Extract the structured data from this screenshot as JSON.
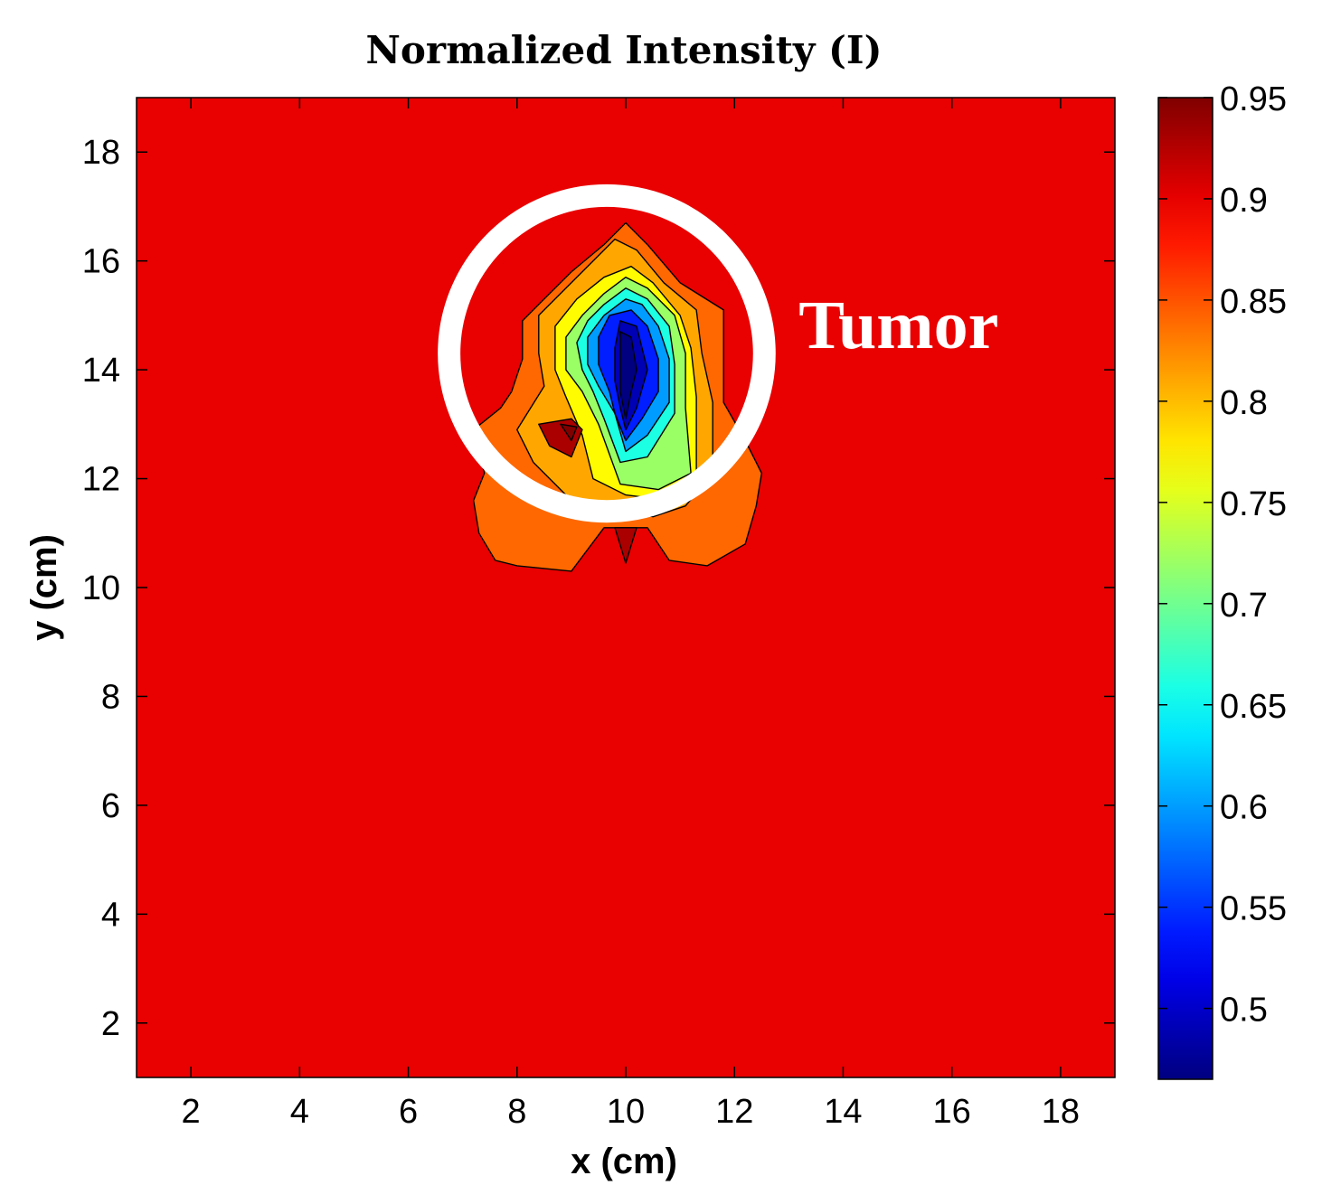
{
  "chart_data": {
    "type": "heatmap",
    "subtype": "filled-contour",
    "title": "Normalized Intensity (I)",
    "xlabel": "x (cm)",
    "ylabel": "y (cm)",
    "xlim": [
      1,
      19
    ],
    "ylim": [
      1,
      19
    ],
    "xticks": [
      2,
      4,
      6,
      8,
      10,
      12,
      14,
      16,
      18
    ],
    "yticks": [
      2,
      4,
      6,
      8,
      10,
      12,
      14,
      16,
      18
    ],
    "colorbar": {
      "range": [
        0.465,
        0.95
      ],
      "ticks": [
        0.5,
        0.55,
        0.6,
        0.65,
        0.7,
        0.75,
        0.8,
        0.85,
        0.9,
        0.95
      ],
      "tick_labels": [
        "0.5",
        "0.55",
        "0.6",
        "0.65",
        "0.7",
        "0.75",
        "0.8",
        "0.85",
        "0.9",
        "0.95"
      ],
      "colormap": "jet"
    },
    "background_value": 0.9,
    "contours": [
      {
        "name": "outer-lobes",
        "value": 0.84,
        "points": [
          [
            7.3,
            11.0
          ],
          [
            7.6,
            10.5
          ],
          [
            8.0,
            10.4
          ],
          [
            9.0,
            10.3
          ],
          [
            9.6,
            11.1
          ],
          [
            10.4,
            11.1
          ],
          [
            10.8,
            10.5
          ],
          [
            11.5,
            10.4
          ],
          [
            12.2,
            10.8
          ],
          [
            12.4,
            11.5
          ],
          [
            12.5,
            12.1
          ],
          [
            12.2,
            12.7
          ],
          [
            11.8,
            13.4
          ],
          [
            11.8,
            14.2
          ],
          [
            11.8,
            15.1
          ],
          [
            11.0,
            15.6
          ],
          [
            10.4,
            16.3
          ],
          [
            10.0,
            16.7
          ],
          [
            9.6,
            16.3
          ],
          [
            9.0,
            15.8
          ],
          [
            8.5,
            15.3
          ],
          [
            8.1,
            14.9
          ],
          [
            8.1,
            14.2
          ],
          [
            7.9,
            13.6
          ],
          [
            7.7,
            13.3
          ],
          [
            7.2,
            12.9
          ],
          [
            7.4,
            12.1
          ],
          [
            7.2,
            11.6
          ]
        ]
      },
      {
        "name": "orange-band",
        "value": 0.81,
        "points": [
          [
            8.0,
            12.9
          ],
          [
            8.3,
            12.3
          ],
          [
            8.9,
            11.7
          ],
          [
            9.6,
            11.5
          ],
          [
            10.5,
            11.3
          ],
          [
            11.1,
            11.5
          ],
          [
            11.6,
            12.1
          ],
          [
            11.6,
            13.4
          ],
          [
            11.4,
            14.3
          ],
          [
            11.3,
            15.1
          ],
          [
            10.7,
            15.6
          ],
          [
            10.2,
            16.2
          ],
          [
            9.8,
            16.4
          ],
          [
            9.2,
            15.8
          ],
          [
            8.7,
            15.3
          ],
          [
            8.4,
            15.0
          ],
          [
            8.4,
            14.3
          ],
          [
            8.5,
            13.7
          ]
        ]
      },
      {
        "name": "yellow",
        "value": 0.77,
        "points": [
          [
            9.4,
            12.0
          ],
          [
            10.0,
            11.7
          ],
          [
            10.8,
            11.6
          ],
          [
            11.3,
            12.0
          ],
          [
            11.3,
            13.5
          ],
          [
            11.2,
            14.4
          ],
          [
            11.0,
            15.0
          ],
          [
            10.5,
            15.6
          ],
          [
            10.1,
            15.9
          ],
          [
            9.6,
            15.7
          ],
          [
            9.1,
            15.3
          ],
          [
            8.7,
            14.8
          ],
          [
            8.7,
            14.0
          ],
          [
            8.9,
            13.5
          ],
          [
            9.2,
            12.8
          ]
        ]
      },
      {
        "name": "light-green",
        "value": 0.72,
        "points": [
          [
            9.9,
            11.9
          ],
          [
            10.6,
            11.8
          ],
          [
            11.2,
            12.1
          ],
          [
            11.1,
            13.3
          ],
          [
            11.1,
            14.3
          ],
          [
            10.9,
            15.0
          ],
          [
            10.4,
            15.5
          ],
          [
            10.0,
            15.7
          ],
          [
            9.6,
            15.4
          ],
          [
            9.2,
            15.0
          ],
          [
            8.9,
            14.6
          ],
          [
            8.9,
            14.0
          ],
          [
            9.2,
            13.6
          ],
          [
            9.5,
            13.0
          ]
        ]
      },
      {
        "name": "cyan",
        "value": 0.66,
        "points": [
          [
            9.9,
            12.3
          ],
          [
            10.4,
            12.4
          ],
          [
            10.9,
            13.2
          ],
          [
            10.9,
            14.1
          ],
          [
            10.8,
            14.8
          ],
          [
            10.4,
            15.3
          ],
          [
            10.0,
            15.5
          ],
          [
            9.6,
            15.2
          ],
          [
            9.3,
            14.9
          ],
          [
            9.1,
            14.5
          ],
          [
            9.2,
            14.0
          ],
          [
            9.4,
            13.6
          ],
          [
            9.6,
            13.1
          ]
        ]
      },
      {
        "name": "light-blue",
        "value": 0.6,
        "points": [
          [
            10.0,
            12.5
          ],
          [
            10.4,
            12.8
          ],
          [
            10.8,
            13.4
          ],
          [
            10.8,
            14.2
          ],
          [
            10.6,
            14.8
          ],
          [
            10.3,
            15.2
          ],
          [
            10.0,
            15.3
          ],
          [
            9.6,
            15.0
          ],
          [
            9.3,
            14.6
          ],
          [
            9.3,
            14.1
          ],
          [
            9.5,
            13.7
          ],
          [
            9.8,
            13.2
          ]
        ]
      },
      {
        "name": "blue",
        "value": 0.54,
        "points": [
          [
            10.0,
            12.7
          ],
          [
            10.3,
            13.1
          ],
          [
            10.6,
            13.6
          ],
          [
            10.6,
            14.2
          ],
          [
            10.4,
            14.8
          ],
          [
            10.1,
            15.1
          ],
          [
            9.7,
            15.0
          ],
          [
            9.5,
            14.6
          ],
          [
            9.5,
            14.1
          ],
          [
            9.7,
            13.6
          ],
          [
            9.8,
            13.2
          ]
        ]
      },
      {
        "name": "deep-blue",
        "value": 0.49,
        "points": [
          [
            10.0,
            12.9
          ],
          [
            10.2,
            13.3
          ],
          [
            10.4,
            14.0
          ],
          [
            10.2,
            14.8
          ],
          [
            9.9,
            14.9
          ],
          [
            9.8,
            14.4
          ],
          [
            9.8,
            13.8
          ],
          [
            9.9,
            13.3
          ]
        ]
      },
      {
        "name": "core",
        "value": 0.465,
        "points": [
          [
            10.0,
            13.1
          ],
          [
            10.1,
            13.6
          ],
          [
            10.2,
            14.0
          ],
          [
            10.1,
            14.6
          ],
          [
            9.9,
            14.7
          ],
          [
            9.9,
            14.1
          ],
          [
            9.9,
            13.6
          ]
        ]
      },
      {
        "name": "hot-spot-left",
        "value": 0.93,
        "points": [
          [
            8.4,
            13.0
          ],
          [
            9.0,
            13.1
          ],
          [
            9.2,
            12.9
          ],
          [
            9.0,
            12.4
          ],
          [
            8.6,
            12.6
          ]
        ]
      },
      {
        "name": "hot-spot-left-core",
        "value": 0.95,
        "points": [
          [
            8.8,
            13.0
          ],
          [
            9.1,
            12.95
          ],
          [
            9.0,
            12.7
          ]
        ]
      },
      {
        "name": "hot-spot-bottom",
        "value": 0.93,
        "points": [
          [
            9.8,
            11.1
          ],
          [
            10.2,
            11.1
          ],
          [
            10.0,
            10.45
          ]
        ]
      }
    ],
    "annotations": [
      {
        "text": "Tumor",
        "circle_center": [
          9.65,
          14.3
        ],
        "circle_radius": 2.9
      }
    ]
  }
}
